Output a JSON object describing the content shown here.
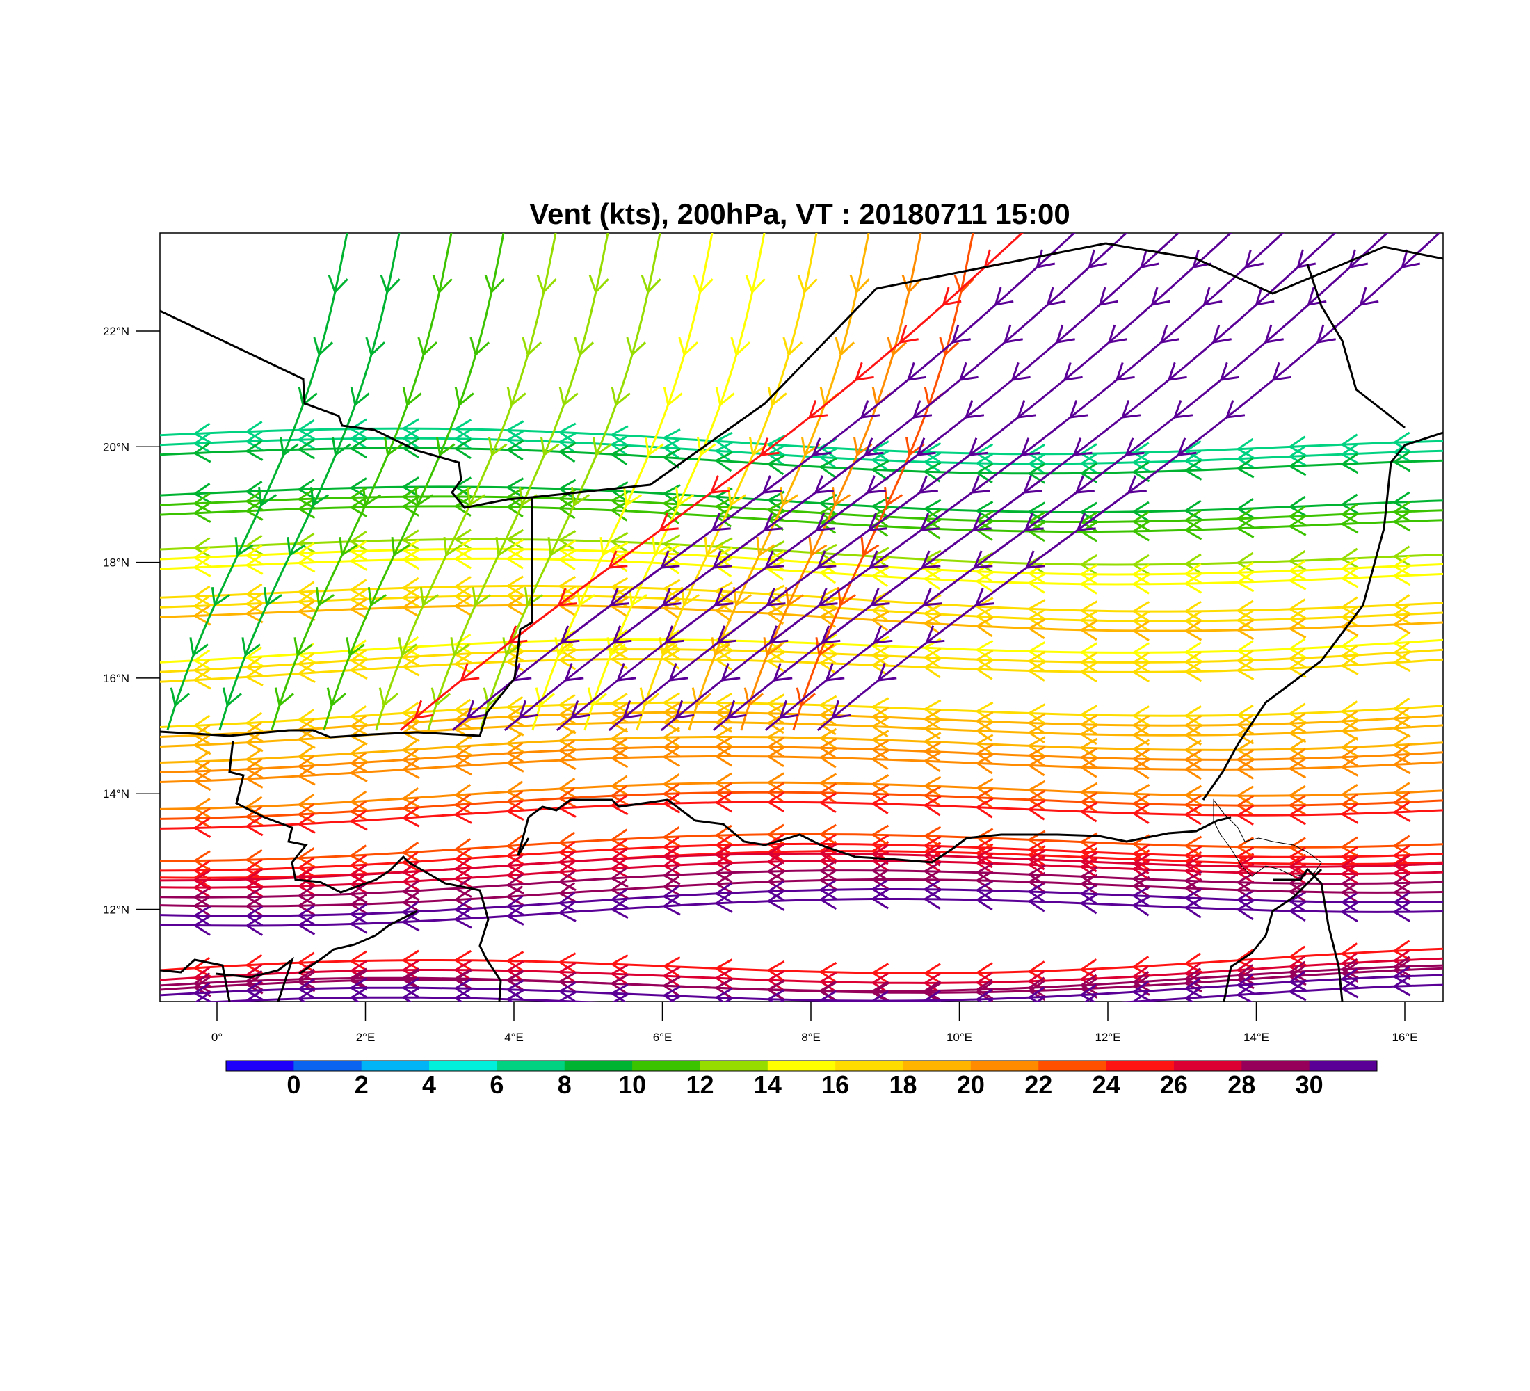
{
  "title": "Vent (kts), 200hPa, VT : 20180711  15:00",
  "x_ticks": [
    "0°",
    "2°E",
    "4°E",
    "6°E",
    "8°E",
    "10°E",
    "12°E",
    "14°E",
    "16°E"
  ],
  "y_ticks": [
    "22°N",
    "20°N",
    "18°N",
    "16°N",
    "14°N",
    "12°N"
  ],
  "colorbar": {
    "labels": [
      "0",
      "2",
      "4",
      "6",
      "8",
      "10",
      "12",
      "14",
      "16",
      "18",
      "20",
      "22",
      "24",
      "26",
      "28",
      "30"
    ],
    "colors": [
      "#1e00fa",
      "#0a64f0",
      "#00b4f5",
      "#00f0dc",
      "#00d282",
      "#00b432",
      "#3cc300",
      "#96dc00",
      "#ffff00",
      "#ffdc00",
      "#ffb400",
      "#ff8c00",
      "#ff5000",
      "#ff1414",
      "#dc0032",
      "#96005a",
      "#5a0096"
    ]
  },
  "streamlines": [
    {
      "lat": 12.3,
      "speed": 30
    },
    {
      "lat": 12.8,
      "speed": 26
    },
    {
      "lat": 13.1,
      "speed": 24
    },
    {
      "lat": 14.0,
      "speed": 22
    },
    {
      "lat": 14.8,
      "speed": 20
    },
    {
      "lat": 15.4,
      "speed": 18
    },
    {
      "lat": 16.5,
      "speed": 16
    },
    {
      "lat": 17.1,
      "speed": 17
    },
    {
      "lat": 17.9,
      "speed": 14
    },
    {
      "lat": 18.8,
      "speed": 10
    },
    {
      "lat": 19.8,
      "speed": 7
    },
    {
      "lat": 11.0,
      "speed": 26
    },
    {
      "lat": 10.7,
      "speed": 30
    }
  ]
}
